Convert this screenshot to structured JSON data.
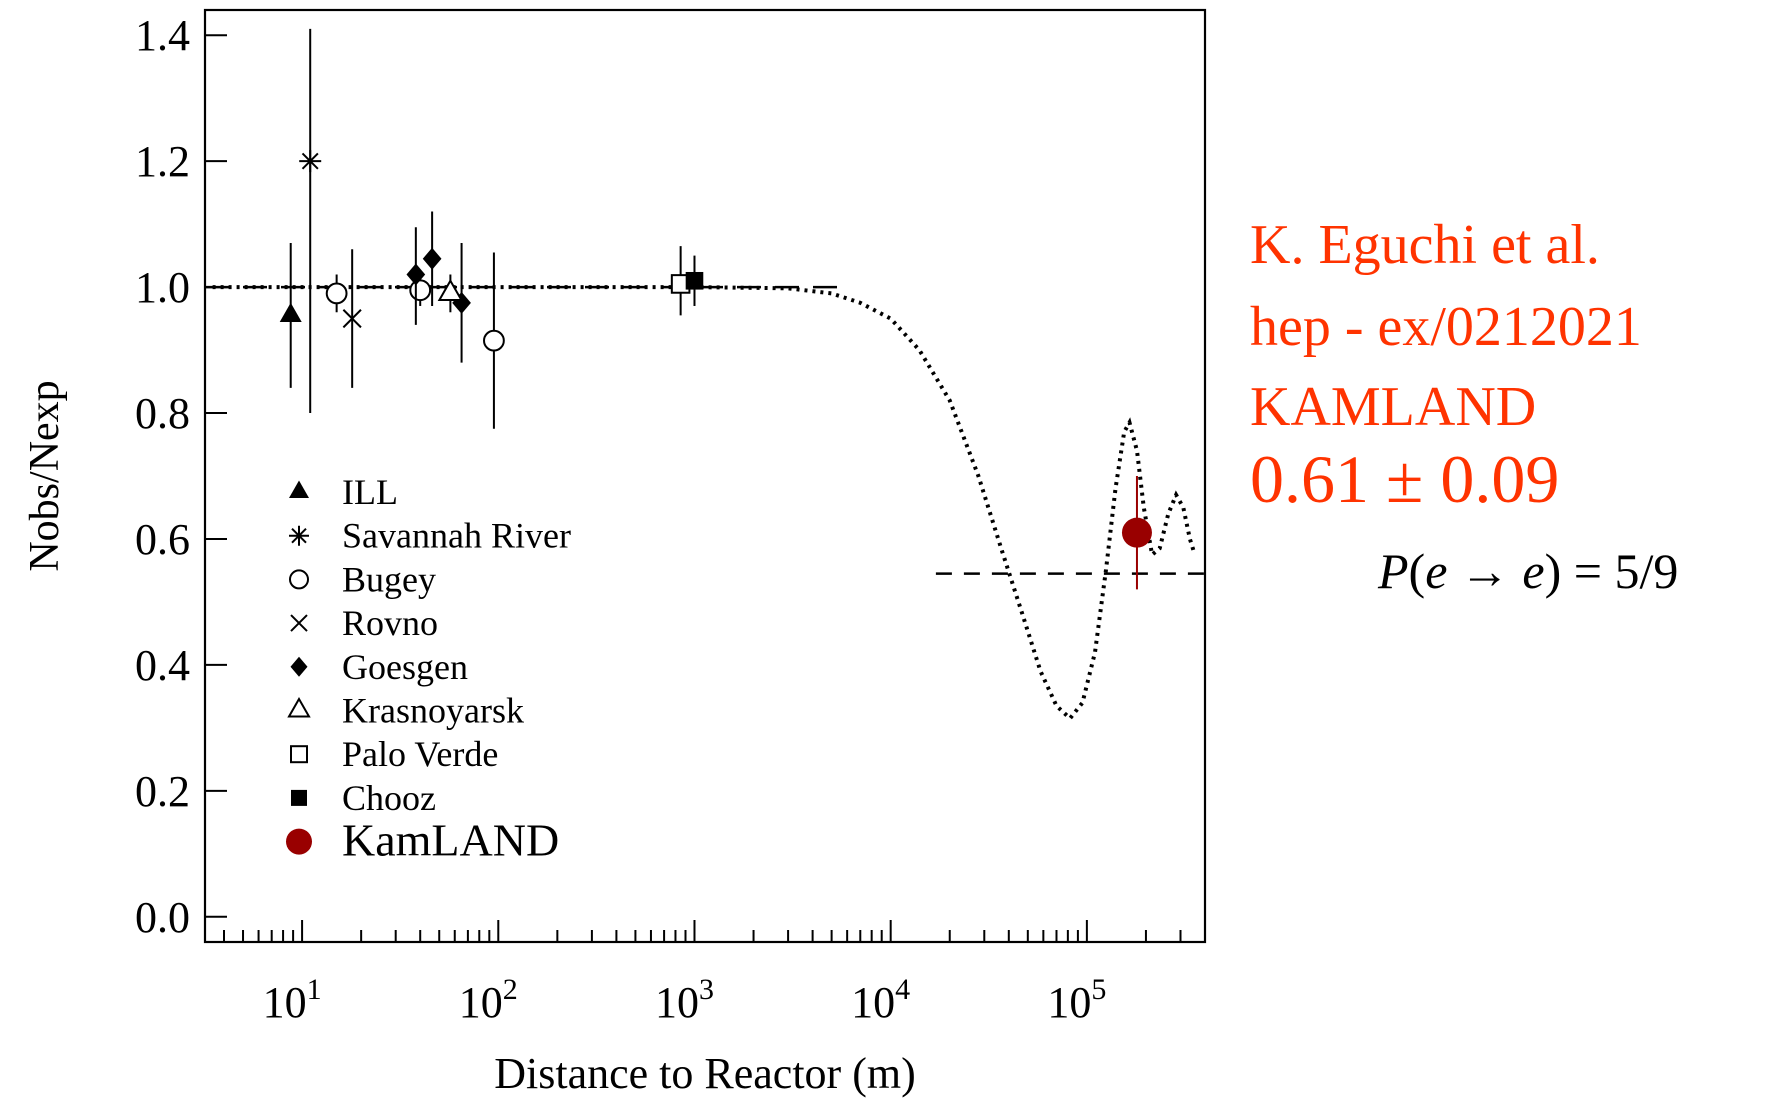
{
  "chart_data": {
    "type": "scatter",
    "xscale": "log",
    "xlim": [
      3.2,
      400000
    ],
    "ylim": [
      -0.04,
      1.44
    ],
    "xlabel": "Distance to Reactor (m)",
    "ylabel": "Nobs/Nexp",
    "yticks": [
      "0.0",
      "0.2",
      "0.4",
      "0.6",
      "0.8",
      "1.0",
      "1.2",
      "1.4"
    ],
    "xticks": [
      {
        "base": "10",
        "exp": "1"
      },
      {
        "base": "10",
        "exp": "2"
      },
      {
        "base": "10",
        "exp": "3"
      },
      {
        "base": "10",
        "exp": "4"
      },
      {
        "base": "10",
        "exp": "5"
      }
    ],
    "grid": false,
    "legend_position": "bottom-left",
    "series": [
      {
        "name": "ILL",
        "marker": "triangle-filled",
        "color": "#000000",
        "points": [
          {
            "x": 8.75,
            "y": 0.955,
            "ylo": 0.84,
            "yhi": 1.07
          }
        ]
      },
      {
        "name": "Savannah River",
        "marker": "asterisk",
        "color": "#000000",
        "points": [
          {
            "x": 11,
            "y": 1.2,
            "ylo": 0.8,
            "yhi": 1.41
          }
        ]
      },
      {
        "name": "Bugey",
        "marker": "circle-open",
        "color": "#000000",
        "points": [
          {
            "x": 15,
            "y": 0.99,
            "ylo": 0.96,
            "yhi": 1.02
          },
          {
            "x": 40,
            "y": 0.995,
            "ylo": 0.97,
            "yhi": 1.02
          },
          {
            "x": 95,
            "y": 0.915,
            "ylo": 0.775,
            "yhi": 1.055
          }
        ]
      },
      {
        "name": "Rovno",
        "marker": "cross",
        "color": "#000000",
        "points": [
          {
            "x": 18,
            "y": 0.95,
            "ylo": 0.84,
            "yhi": 1.06
          }
        ]
      },
      {
        "name": "Goesgen",
        "marker": "diamond-filled",
        "color": "#000000",
        "points": [
          {
            "x": 38,
            "y": 1.02,
            "ylo": 0.94,
            "yhi": 1.095
          },
          {
            "x": 46,
            "y": 1.045,
            "ylo": 0.97,
            "yhi": 1.12
          },
          {
            "x": 65,
            "y": 0.975,
            "ylo": 0.88,
            "yhi": 1.07
          }
        ]
      },
      {
        "name": "Krasnoyarsk",
        "marker": "triangle-open",
        "color": "#000000",
        "points": [
          {
            "x": 57,
            "y": 0.99,
            "ylo": 0.96,
            "yhi": 1.02
          }
        ]
      },
      {
        "name": "Palo Verde",
        "marker": "square-open",
        "color": "#000000",
        "points": [
          {
            "x": 850,
            "y": 1.005,
            "ylo": 0.955,
            "yhi": 1.065
          }
        ]
      },
      {
        "name": "Chooz",
        "marker": "square-filled",
        "color": "#000000",
        "points": [
          {
            "x": 1000,
            "y": 1.01,
            "ylo": 0.97,
            "yhi": 1.05
          }
        ]
      },
      {
        "name": "KamLAND",
        "marker": "circle-filled",
        "color": "#990000",
        "points": [
          {
            "x": 180000,
            "y": 0.61,
            "ylo": 0.52,
            "yhi": 0.7
          }
        ]
      }
    ],
    "reference_lines": [
      {
        "y": 1.0,
        "xmin": 3.2,
        "xmax": 5500,
        "style": "long-dash"
      },
      {
        "y": 0.545,
        "xmin": 17000,
        "xmax": 400000,
        "style": "dash"
      }
    ],
    "oscillation_curve": {
      "style": "dotted",
      "points": [
        [
          3.5,
          1.0
        ],
        [
          1000,
          1.0
        ],
        [
          3000,
          0.998
        ],
        [
          5000,
          0.99
        ],
        [
          7000,
          0.975
        ],
        [
          10000,
          0.95
        ],
        [
          14000,
          0.9
        ],
        [
          20000,
          0.82
        ],
        [
          28000,
          0.7
        ],
        [
          37000,
          0.58
        ],
        [
          47000,
          0.48
        ],
        [
          58000,
          0.39
        ],
        [
          70000,
          0.335
        ],
        [
          82000,
          0.315
        ],
        [
          95000,
          0.34
        ],
        [
          110000,
          0.42
        ],
        [
          125000,
          0.55
        ],
        [
          140000,
          0.68
        ],
        [
          155000,
          0.77
        ],
        [
          165000,
          0.785
        ],
        [
          180000,
          0.74
        ],
        [
          195000,
          0.65
        ],
        [
          215000,
          0.575
        ],
        [
          235000,
          0.585
        ],
        [
          260000,
          0.64
        ],
        [
          285000,
          0.67
        ],
        [
          310000,
          0.65
        ],
        [
          335000,
          0.6
        ],
        [
          355000,
          0.575
        ]
      ]
    },
    "annotations": {
      "ref_lines": [
        "K. Eguchi et al.",
        "hep - ex/0212021",
        "KAMLAND"
      ],
      "result": "0.61 ± 0.09",
      "probability": {
        "p": "P",
        "open": "(",
        "e1": "e",
        "arrow": " → ",
        "e2": "e",
        "close": ")",
        "eq": " = 5/9"
      },
      "annotation_color": "#ff3300"
    }
  }
}
